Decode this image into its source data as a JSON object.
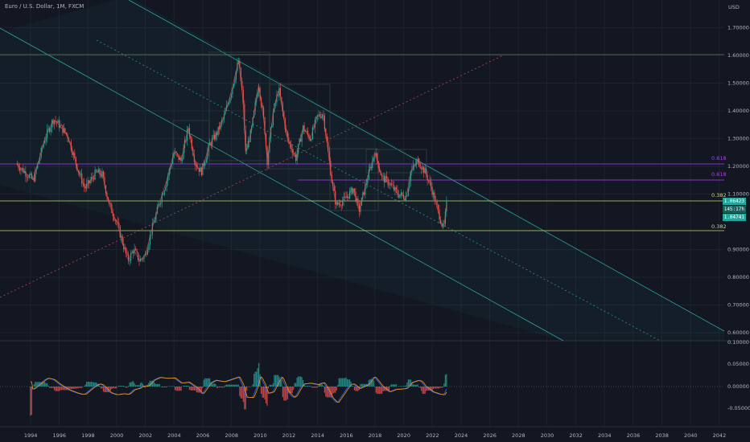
{
  "header": {
    "symbol_title": "Euro / U.S. Dollar, 1M, FXCM",
    "currency": "USD"
  },
  "colors": {
    "background": "#131722",
    "grid": "#1e222d",
    "up": "#26a69a",
    "down": "#ef5350",
    "channel": "#2aa198",
    "fib_purple": "#b23cff",
    "fib_yellow": "#c8d96e",
    "macd_line": "#2962ff",
    "signal_line": "#ff9800"
  },
  "price_badges": [
    {
      "text": "1.06423",
      "color": "#26a69a"
    },
    {
      "text": "145:17h",
      "color": "#1b5e57"
    },
    {
      "text": "1.04741",
      "color": "#26a69a"
    }
  ],
  "chart_data": [
    {
      "type": "candlestick",
      "title": "Euro / U.S. Dollar, 1M, FXCM",
      "ylabel": "USD",
      "xlim": [
        1993,
        2042
      ],
      "ylim": [
        0.555,
        1.79
      ],
      "x_ticks": [
        "1994",
        "1996",
        "1998",
        "2000",
        "2002",
        "2004",
        "2006",
        "2008",
        "2010",
        "2012",
        "2014",
        "2016",
        "2018",
        "2020",
        "2022",
        "2024",
        "2026",
        "2028",
        "2030",
        "2032",
        "2034",
        "2036",
        "2038",
        "2040",
        "2042"
      ],
      "y_ticks": [
        "1.70000",
        "1.60000",
        "1.50000",
        "1.40000",
        "1.30000",
        "1.20000",
        "1.10000",
        "0.90000",
        "0.80000",
        "0.70000",
        "0.60000"
      ],
      "price_path": [
        [
          1993.0,
          1.21
        ],
        [
          1993.6,
          1.18
        ],
        [
          1994.2,
          1.15
        ],
        [
          1995.0,
          1.3
        ],
        [
          1995.6,
          1.37
        ],
        [
          1996.0,
          1.35
        ],
        [
          1996.6,
          1.31
        ],
        [
          1997.3,
          1.19
        ],
        [
          1997.8,
          1.12
        ],
        [
          1998.6,
          1.18
        ],
        [
          1999.0,
          1.17
        ],
        [
          1999.5,
          1.06
        ],
        [
          2000.0,
          1.0
        ],
        [
          2000.4,
          0.93
        ],
        [
          2000.8,
          0.86
        ],
        [
          2001.2,
          0.9
        ],
        [
          2001.6,
          0.86
        ],
        [
          2002.0,
          0.88
        ],
        [
          2002.5,
          0.98
        ],
        [
          2003.0,
          1.07
        ],
        [
          2003.5,
          1.15
        ],
        [
          2004.0,
          1.25
        ],
        [
          2004.5,
          1.22
        ],
        [
          2005.0,
          1.34
        ],
        [
          2005.5,
          1.21
        ],
        [
          2005.9,
          1.18
        ],
        [
          2006.5,
          1.28
        ],
        [
          2007.0,
          1.32
        ],
        [
          2007.5,
          1.38
        ],
        [
          2008.0,
          1.47
        ],
        [
          2008.5,
          1.58
        ],
        [
          2008.8,
          1.45
        ],
        [
          2009.0,
          1.25
        ],
        [
          2009.4,
          1.33
        ],
        [
          2009.9,
          1.5
        ],
        [
          2010.3,
          1.35
        ],
        [
          2010.5,
          1.22
        ],
        [
          2010.9,
          1.39
        ],
        [
          2011.3,
          1.48
        ],
        [
          2011.9,
          1.3
        ],
        [
          2012.5,
          1.23
        ],
        [
          2013.0,
          1.34
        ],
        [
          2013.5,
          1.3
        ],
        [
          2014.0,
          1.38
        ],
        [
          2014.4,
          1.39
        ],
        [
          2015.0,
          1.15
        ],
        [
          2015.3,
          1.06
        ],
        [
          2015.9,
          1.08
        ],
        [
          2016.5,
          1.12
        ],
        [
          2016.9,
          1.04
        ],
        [
          2017.5,
          1.16
        ],
        [
          2018.0,
          1.25
        ],
        [
          2018.5,
          1.16
        ],
        [
          2019.0,
          1.14
        ],
        [
          2019.6,
          1.1
        ],
        [
          2020.2,
          1.09
        ],
        [
          2020.5,
          1.18
        ],
        [
          2021.0,
          1.22
        ],
        [
          2021.5,
          1.18
        ],
        [
          2021.9,
          1.13
        ],
        [
          2022.4,
          1.04
        ],
        [
          2022.8,
          0.97
        ],
        [
          2023.0,
          1.064
        ]
      ],
      "last_close": 1.06423,
      "macd": {
        "zero_label": "0.00000",
        "upper_label": "0.05000",
        "lower_label": "-0.05000",
        "top_label": "0.10000"
      },
      "fib_labels": [
        {
          "text": "0.618",
          "color": "#b23cff"
        },
        {
          "text": "0.618",
          "color": "#b23cff"
        },
        {
          "text": "0.382",
          "color": "#c8d96e"
        },
        {
          "text": "0.382",
          "color": "#c8d96e"
        }
      ]
    }
  ]
}
